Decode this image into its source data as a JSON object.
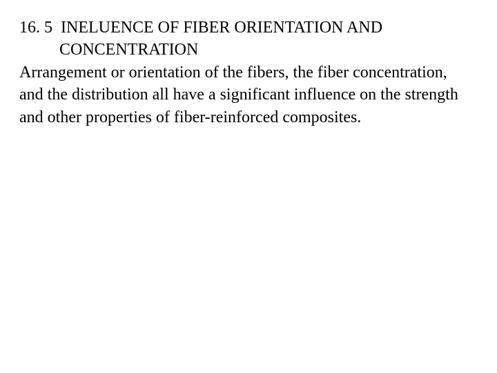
{
  "section": {
    "number": "16. 5",
    "title_line1": "INELUENCE OF FIBER ORIENTATION AND",
    "title_line2": "CONCENTRATION",
    "body": "Arrangement or orientation of the fibers, the fiber concentration, and the distribution all have a significant influence on the strength and other properties of fiber-reinforced composites.",
    "text_color": "#000000",
    "background_color": "#ffffff",
    "font_family": "Times New Roman",
    "font_size_pt": 18
  }
}
